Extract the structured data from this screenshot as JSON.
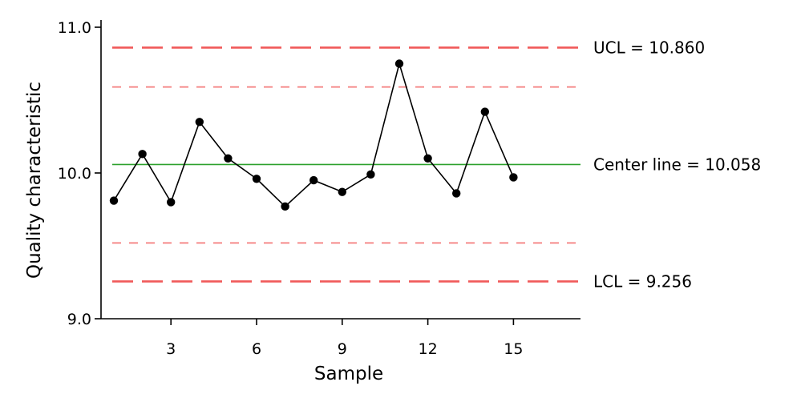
{
  "chart_data": {
    "type": "line",
    "title": "",
    "xlabel": "Sample",
    "ylabel": "Quality characteristic",
    "xlim": [
      0,
      16
    ],
    "ylim": [
      9.0,
      11.0
    ],
    "x_ticks": [
      3,
      6,
      9,
      12,
      15
    ],
    "x_tick_labels": [
      "3",
      "6",
      "9",
      "12",
      "15"
    ],
    "y_ticks": [
      9.0,
      10.0,
      11.0
    ],
    "y_tick_labels": [
      "9.0",
      "10.0",
      "11.0"
    ],
    "grid": false,
    "series": [
      {
        "color": "#000000",
        "marker": "circle",
        "x": [
          1,
          2,
          3,
          4,
          5,
          6,
          7,
          8,
          9,
          10,
          11,
          12,
          13,
          14,
          15
        ],
        "y": [
          9.81,
          10.13,
          9.8,
          10.35,
          10.1,
          9.96,
          9.77,
          9.95,
          9.87,
          9.99,
          10.75,
          10.1,
          9.86,
          10.42,
          9.97
        ]
      }
    ],
    "reference_lines": [
      {
        "id": "ucl",
        "y": 10.86,
        "color": "#f05a5a",
        "style": "long-dash",
        "label": "UCL = 10.860"
      },
      {
        "id": "upper-warning",
        "y": 10.59,
        "color": "#f47c7c",
        "style": "short-dash",
        "label": ""
      },
      {
        "id": "center",
        "y": 10.058,
        "color": "#2ca02c",
        "style": "solid",
        "label": "Center line = 10.058"
      },
      {
        "id": "lower-warning",
        "y": 9.52,
        "color": "#f47c7c",
        "style": "short-dash",
        "label": ""
      },
      {
        "id": "lcl",
        "y": 9.256,
        "color": "#f05a5a",
        "style": "long-dash",
        "label": "LCL = 9.256"
      }
    ]
  }
}
